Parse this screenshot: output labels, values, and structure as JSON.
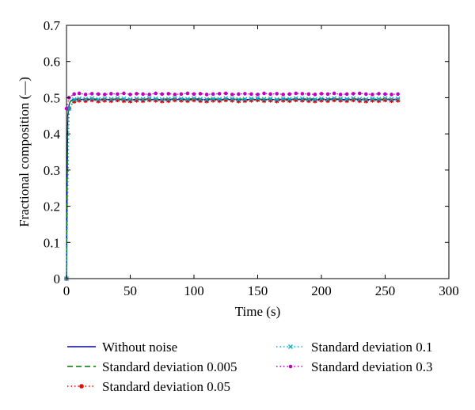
{
  "chart_data": {
    "type": "line",
    "xlabel": "Time (s)",
    "ylabel": "Fractional composition (—)",
    "xlim": [
      0,
      300
    ],
    "ylim": [
      0,
      0.7
    ],
    "xticks": [
      "0",
      "50",
      "100",
      "150",
      "200",
      "250",
      "300"
    ],
    "yticks": [
      "0",
      "0.1",
      "0.2",
      "0.3",
      "0.4",
      "0.5",
      "0.6",
      "0.7"
    ],
    "grid": false,
    "legend_position": "below",
    "series": [
      {
        "name": "Without noise",
        "color": "#0000cc",
        "line": "solid",
        "marker": "none",
        "x": [
          0,
          0.5,
          1,
          2,
          3,
          5,
          10,
          50,
          100,
          150,
          200,
          260
        ],
        "y": [
          0,
          0.25,
          0.45,
          0.48,
          0.49,
          0.495,
          0.495,
          0.495,
          0.495,
          0.495,
          0.495,
          0.495
        ]
      },
      {
        "name": "Standard deviation 0.005",
        "color": "#007a00",
        "line": "dashed",
        "marker": "none",
        "x": [
          0,
          0.5,
          1,
          2,
          3,
          5,
          10,
          50,
          100,
          150,
          200,
          260
        ],
        "y": [
          0,
          0.25,
          0.45,
          0.48,
          0.49,
          0.496,
          0.497,
          0.496,
          0.497,
          0.496,
          0.497,
          0.496
        ]
      },
      {
        "name": "Standard deviation 0.05",
        "color": "#e00000",
        "line": "dotted",
        "marker": "star",
        "x": [
          0,
          2,
          6,
          10,
          15,
          20,
          25,
          30,
          35,
          40,
          45,
          50,
          55,
          60,
          65,
          70,
          75,
          80,
          85,
          90,
          95,
          100,
          105,
          110,
          115,
          120,
          125,
          130,
          135,
          140,
          145,
          150,
          155,
          160,
          165,
          170,
          175,
          180,
          185,
          190,
          195,
          200,
          205,
          210,
          215,
          220,
          225,
          230,
          235,
          240,
          245,
          250,
          255,
          260
        ],
        "y": [
          0,
          0.47,
          0.49,
          0.493,
          0.492,
          0.494,
          0.491,
          0.493,
          0.492,
          0.494,
          0.492,
          0.491,
          0.493,
          0.492,
          0.494,
          0.493,
          0.491,
          0.492,
          0.494,
          0.493,
          0.492,
          0.494,
          0.492,
          0.491,
          0.493,
          0.492,
          0.494,
          0.493,
          0.491,
          0.492,
          0.493,
          0.494,
          0.492,
          0.493,
          0.491,
          0.493,
          0.492,
          0.494,
          0.493,
          0.492,
          0.491,
          0.493,
          0.492,
          0.494,
          0.493,
          0.492,
          0.494,
          0.492,
          0.491,
          0.493,
          0.492,
          0.494,
          0.492,
          0.493
        ]
      },
      {
        "name": "Standard deviation 0.1",
        "color": "#00b0c8",
        "line": "dotted",
        "marker": "x",
        "x": [
          0,
          2,
          6,
          10,
          15,
          20,
          25,
          30,
          35,
          40,
          45,
          50,
          55,
          60,
          65,
          70,
          75,
          80,
          85,
          90,
          95,
          100,
          105,
          110,
          115,
          120,
          125,
          130,
          135,
          140,
          145,
          150,
          155,
          160,
          165,
          170,
          175,
          180,
          185,
          190,
          195,
          200,
          205,
          210,
          215,
          220,
          225,
          230,
          235,
          240,
          245,
          250,
          255,
          260
        ],
        "y": [
          0,
          0.47,
          0.495,
          0.497,
          0.496,
          0.498,
          0.495,
          0.497,
          0.496,
          0.498,
          0.497,
          0.495,
          0.497,
          0.496,
          0.498,
          0.497,
          0.495,
          0.496,
          0.498,
          0.497,
          0.496,
          0.498,
          0.496,
          0.495,
          0.497,
          0.496,
          0.498,
          0.497,
          0.495,
          0.496,
          0.497,
          0.498,
          0.496,
          0.497,
          0.495,
          0.497,
          0.496,
          0.498,
          0.497,
          0.496,
          0.495,
          0.497,
          0.496,
          0.498,
          0.497,
          0.496,
          0.498,
          0.496,
          0.495,
          0.497,
          0.496,
          0.498,
          0.496,
          0.497
        ]
      },
      {
        "name": "Standard deviation 0.3",
        "color": "#c000c0",
        "line": "dotted",
        "marker": "dot",
        "x": [
          0,
          2,
          6,
          10,
          15,
          20,
          25,
          30,
          35,
          40,
          45,
          50,
          55,
          60,
          65,
          70,
          75,
          80,
          85,
          90,
          95,
          100,
          105,
          110,
          115,
          120,
          125,
          130,
          135,
          140,
          145,
          150,
          155,
          160,
          165,
          170,
          175,
          180,
          185,
          190,
          195,
          200,
          205,
          210,
          215,
          220,
          225,
          230,
          235,
          240,
          245,
          250,
          255,
          260
        ],
        "y": [
          0.47,
          0.5,
          0.51,
          0.512,
          0.509,
          0.511,
          0.51,
          0.509,
          0.511,
          0.51,
          0.512,
          0.509,
          0.511,
          0.51,
          0.509,
          0.512,
          0.51,
          0.511,
          0.509,
          0.51,
          0.512,
          0.51,
          0.511,
          0.509,
          0.51,
          0.511,
          0.512,
          0.509,
          0.51,
          0.511,
          0.51,
          0.509,
          0.512,
          0.51,
          0.511,
          0.509,
          0.51,
          0.512,
          0.511,
          0.51,
          0.509,
          0.511,
          0.51,
          0.512,
          0.509,
          0.51,
          0.511,
          0.512,
          0.51,
          0.509,
          0.511,
          0.51,
          0.509,
          0.51
        ]
      }
    ]
  }
}
